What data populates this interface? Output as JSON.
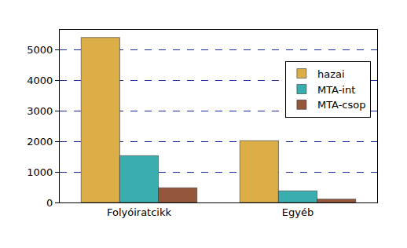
{
  "chart_data": {
    "type": "bar",
    "categories": [
      "Folyóiratcikk",
      "Egyéb"
    ],
    "series": [
      {
        "name": "hazai",
        "color": "#dcae48",
        "values": [
          5400,
          2020
        ]
      },
      {
        "name": "MTA-int",
        "color": "#3aaeae",
        "values": [
          1530,
          380
        ]
      },
      {
        "name": "MTA-csop",
        "color": "#95573b",
        "values": [
          480,
          110
        ]
      }
    ],
    "ylim": [
      0,
      5650
    ],
    "yticks": [
      0,
      1000,
      2000,
      3000,
      4000,
      5000
    ],
    "grid": true,
    "legend": "top right"
  }
}
